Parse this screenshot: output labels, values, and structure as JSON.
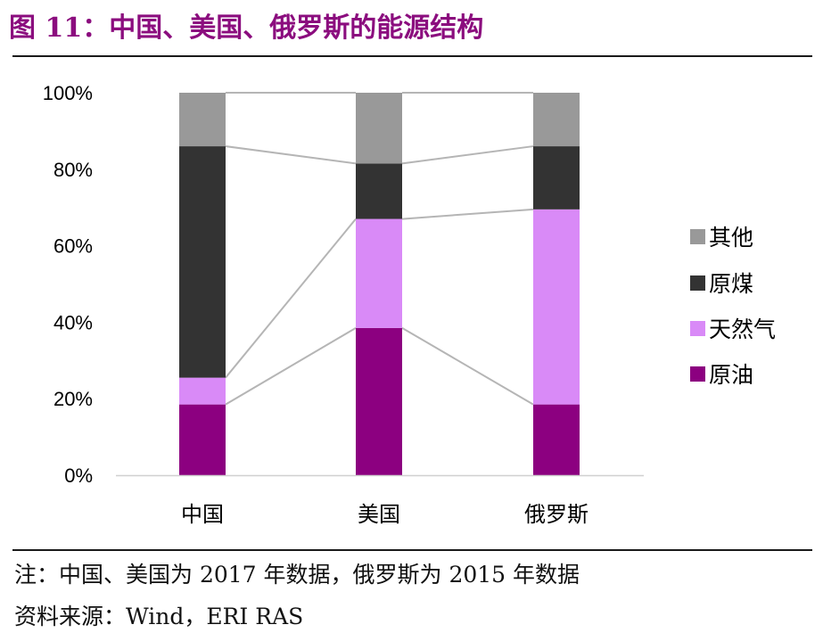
{
  "figure_title": "图 11：中国、美国、俄罗斯的能源结构",
  "note": "注：中国、美国为 2017 年数据，俄罗斯为 2015 年数据",
  "source": "资料来源：Wind，ERI RAS",
  "colors": {
    "其他": "#999999",
    "原煤": "#333333",
    "天然气": "#d98af7",
    "原油": "#8c0080",
    "connector": "#b5b5b5",
    "axis": "#d0d0d0",
    "title": "#8b0d7e"
  },
  "chart_data": {
    "type": "bar",
    "stacked": true,
    "categories": [
      "中国",
      "美国",
      "俄罗斯"
    ],
    "series": [
      {
        "name": "原油",
        "values": [
          18.5,
          38.5,
          18.5
        ]
      },
      {
        "name": "天然气",
        "values": [
          7.0,
          28.5,
          51.0
        ]
      },
      {
        "name": "原煤",
        "values": [
          60.5,
          14.5,
          16.5
        ]
      },
      {
        "name": "其他",
        "values": [
          14.0,
          18.5,
          14.0
        ]
      }
    ],
    "legend": [
      "其他",
      "原煤",
      "天然气",
      "原油"
    ],
    "legend_position": "right",
    "yticks": [
      "0%",
      "20%",
      "40%",
      "60%",
      "80%",
      "100%"
    ],
    "ylim": [
      0,
      100
    ],
    "series_lines": true,
    "grid": false
  }
}
